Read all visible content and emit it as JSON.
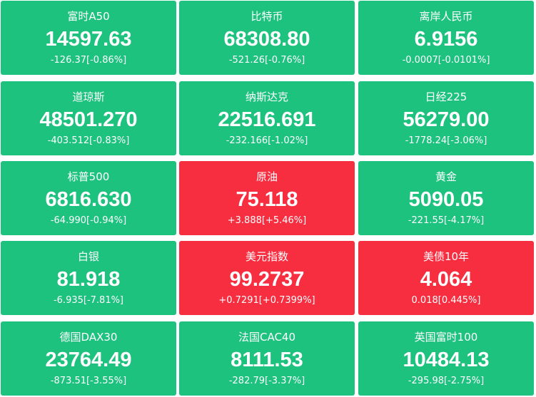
{
  "tiles": [
    {
      "name": "富时A50",
      "price": "14597.63",
      "change": "-126.37[-0.86%]",
      "color": "#1ec27f"
    },
    {
      "name": "比特币",
      "price": "68308.80",
      "change": "-521.26[-0.76%]",
      "color": "#1ec27f"
    },
    {
      "name": "离岸人民币",
      "price": "6.9156",
      "change": "-0.0007[-0.0101%]",
      "color": "#1ec27f"
    },
    {
      "name": "道琼斯",
      "price": "48501.270",
      "change": "-403.512[-0.83%]",
      "color": "#1ec27f"
    },
    {
      "name": "纳斯达克",
      "price": "22516.691",
      "change": "-232.166[-1.02%]",
      "color": "#1ec27f"
    },
    {
      "name": "日经225",
      "price": "56279.00",
      "change": "-1778.24[-3.06%]",
      "color": "#1ec27f"
    },
    {
      "name": "标普500",
      "price": "6816.630",
      "change": "-64.990[-0.94%]",
      "color": "#1ec27f"
    },
    {
      "name": "原油",
      "price": "75.118",
      "change": "+3.888[+5.46%]",
      "color": "#f72d40"
    },
    {
      "name": "黄金",
      "price": "5090.05",
      "change": "-221.55[-4.17%]",
      "color": "#1ec27f"
    },
    {
      "name": "白银",
      "price": "81.918",
      "change": "-6.935[-7.81%]",
      "color": "#1ec27f"
    },
    {
      "name": "美元指数",
      "price": "99.2737",
      "change": "+0.7291[+0.7399%]",
      "color": "#f72d40"
    },
    {
      "name": "美债10年",
      "price": "4.064",
      "change": "0.018[0.445%]",
      "color": "#f72d40"
    },
    {
      "name": "德国DAX30",
      "price": "23764.49",
      "change": "-873.51[-3.55%]",
      "color": "#1ec27f"
    },
    {
      "name": "法国CAC40",
      "price": "8111.53",
      "change": "-282.79[-3.37%]",
      "color": "#1ec27f"
    },
    {
      "name": "英国富时100",
      "price": "10484.13",
      "change": "-295.98[-2.75%]",
      "color": "#1ec27f"
    }
  ]
}
